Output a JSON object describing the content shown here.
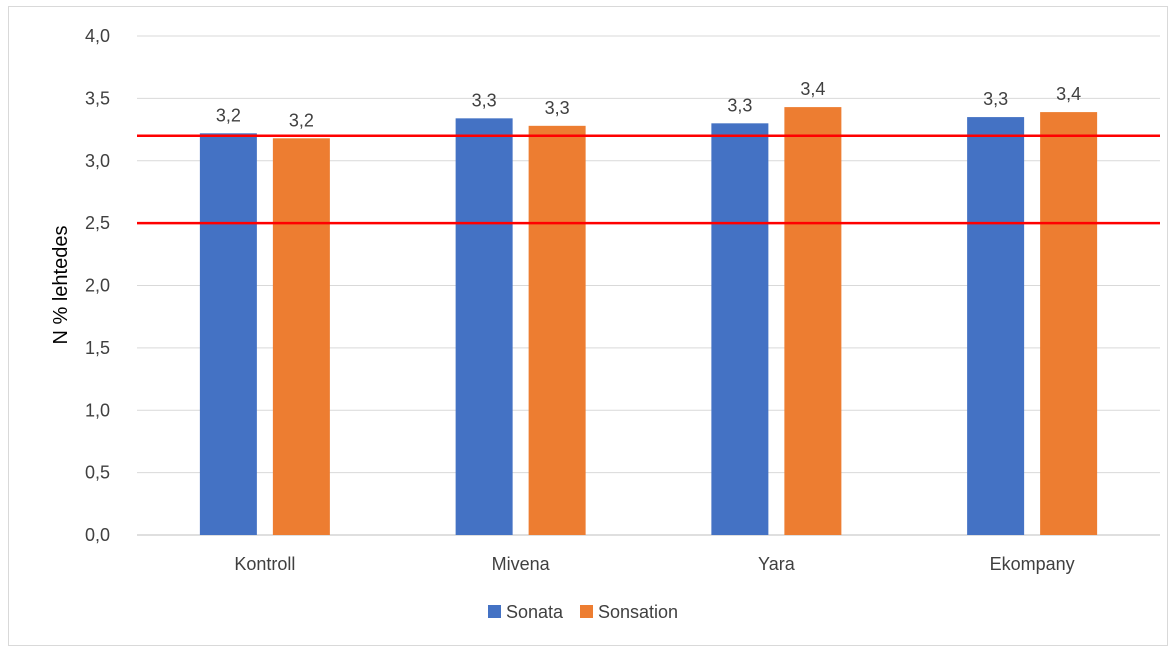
{
  "chart_data": {
    "type": "bar",
    "ylabel": "N % lehtedes",
    "ylim": [
      0,
      4.0
    ],
    "yticks": [
      "0,0",
      "0,5",
      "1,0",
      "1,5",
      "2,0",
      "2,5",
      "3,0",
      "3,5",
      "4,0"
    ],
    "ytick_values": [
      0,
      0.5,
      1.0,
      1.5,
      2.0,
      2.5,
      3.0,
      3.5,
      4.0
    ],
    "grid": true,
    "legend_position": "bottom",
    "categories": [
      "Kontroll",
      "Mivena",
      "Yara",
      "Ekompany"
    ],
    "series": [
      {
        "name": "Sonata",
        "color": "#4472C4",
        "values": [
          3.22,
          3.34,
          3.3,
          3.35
        ],
        "labels": [
          "3,2",
          "3,3",
          "3,3",
          "3,3"
        ]
      },
      {
        "name": "Sonsation",
        "color": "#ED7D31",
        "values": [
          3.18,
          3.28,
          3.43,
          3.39
        ],
        "labels": [
          "3,2",
          "3,3",
          "3,4",
          "3,4"
        ]
      }
    ],
    "reference_lines": [
      {
        "value": 3.2,
        "color": "#FF0000"
      },
      {
        "value": 2.5,
        "color": "#FF0000"
      }
    ]
  }
}
